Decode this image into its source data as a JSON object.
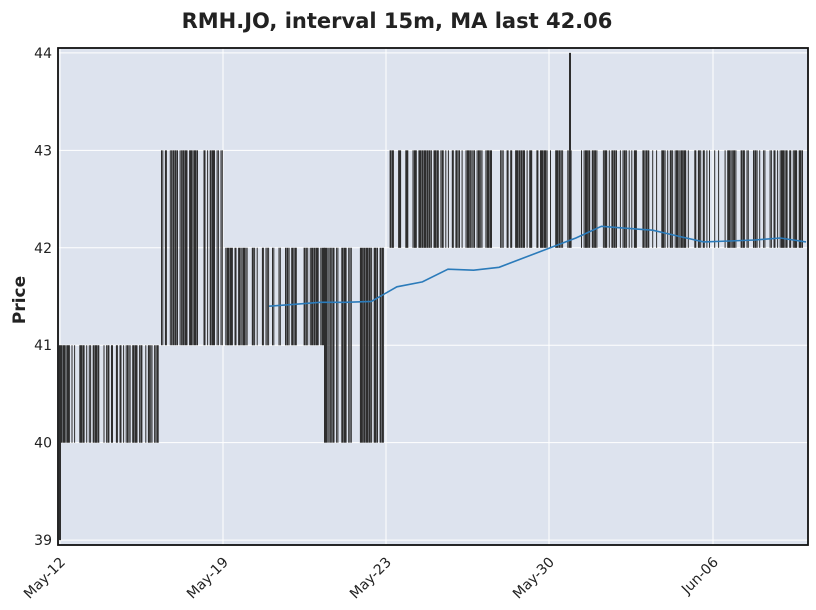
{
  "chart_data": {
    "type": "candlestick",
    "title": "RMH.JO, interval 15m, MA last 42.06",
    "xlabel": "",
    "ylabel": "Price",
    "ylim": [
      38.95,
      44.05
    ],
    "yticks": [
      39,
      40,
      41,
      42,
      43,
      44
    ],
    "xticks": [
      "May-12",
      "May-19",
      "May-23",
      "May-30",
      "Jun-06"
    ],
    "grid": true,
    "colors": {
      "plot_bg": "#dde3ee",
      "grid": "#ffffff",
      "candle": "#2e2e2e",
      "ma_line": "#2b7bba",
      "frame": "#111111"
    },
    "price_regimes": [
      {
        "from": "May-12",
        "to": "May-17",
        "low": 40,
        "high": 41
      },
      {
        "from": "May-17",
        "to": "May-19",
        "low": 41,
        "high": 43
      },
      {
        "from": "May-19",
        "to": "May-22",
        "low": 41,
        "high": 42
      },
      {
        "from": "May-22",
        "to": "May-23",
        "low": 40,
        "high": 42
      },
      {
        "from": "May-23",
        "to": "May-30",
        "low": 42,
        "high": 43
      },
      {
        "from": "May-30",
        "to": "Jun-09",
        "low": 42,
        "high": 43
      }
    ],
    "extremes": {
      "min": 39,
      "max": 44
    },
    "series": [
      {
        "type": "moving_average",
        "values": [
          41.4,
          41.42,
          41.44,
          41.44,
          41.45,
          41.6,
          41.65,
          41.78,
          41.77,
          41.8,
          41.9,
          42.0,
          42.1,
          42.22,
          42.2,
          42.18,
          42.12,
          42.06,
          42.07,
          42.08,
          42.1,
          42.06
        ]
      }
    ]
  }
}
